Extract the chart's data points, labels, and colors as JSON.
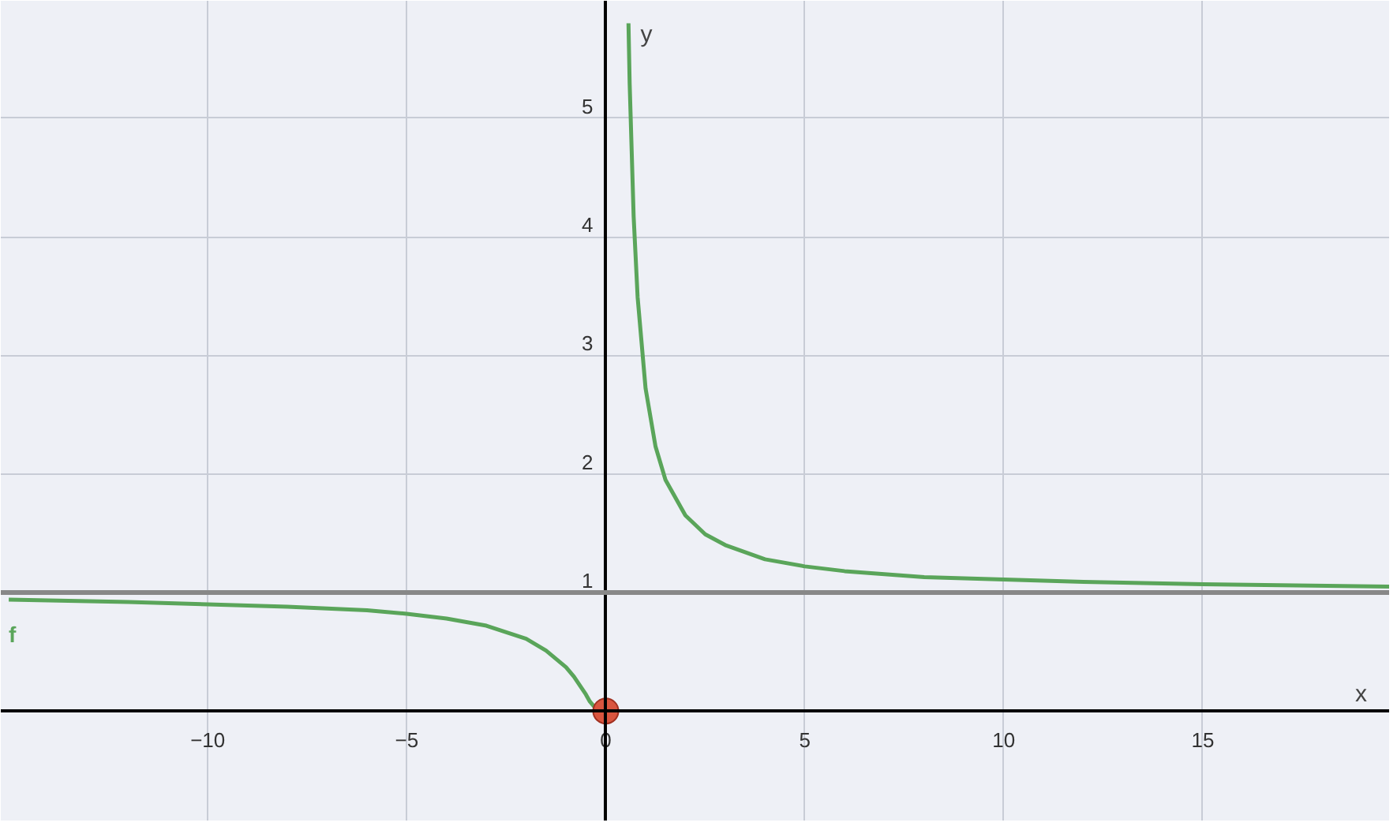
{
  "chart_data": {
    "type": "line",
    "xlabel": "x",
    "ylabel": "y",
    "xlim": [
      -15.2,
      19.7
    ],
    "ylim": [
      -0.93,
      5.99
    ],
    "xticks": [
      -10,
      -5,
      0,
      5,
      10,
      15
    ],
    "yticks": [
      1,
      2,
      3,
      4,
      5
    ],
    "grid": true,
    "series": [
      {
        "name": "f",
        "color": "#5aa55a",
        "x": [
          -15,
          -12,
          -10,
          -8,
          -6,
          -5,
          -4,
          -3,
          -2,
          -1.5,
          -1,
          -0.8,
          -0.6,
          -0.5,
          -0.4,
          -0.3,
          -0.2,
          -0.1,
          0.3,
          0.57,
          0.6,
          0.7,
          0.8,
          1,
          1.25,
          1.5,
          2,
          2.5,
          3,
          4,
          5,
          6,
          8,
          10,
          12,
          15,
          19.7
        ],
        "values": [
          0.94,
          0.92,
          0.9,
          0.88,
          0.85,
          0.82,
          0.78,
          0.72,
          0.61,
          0.51,
          0.37,
          0.29,
          0.19,
          0.14,
          0.08,
          0.04,
          0.01,
          0.0,
          null,
          5.8,
          5.29,
          4.17,
          3.49,
          2.72,
          2.23,
          1.95,
          1.65,
          1.49,
          1.4,
          1.28,
          1.22,
          1.18,
          1.13,
          1.11,
          1.09,
          1.07,
          1.05
        ]
      },
      {
        "type": "scatter",
        "color": "#d9553f",
        "x": [
          0
        ],
        "values": [
          0
        ],
        "marker": "circle"
      }
    ],
    "ref_lines": [
      {
        "axis": "y",
        "value": 1,
        "color": "#888888"
      }
    ]
  }
}
